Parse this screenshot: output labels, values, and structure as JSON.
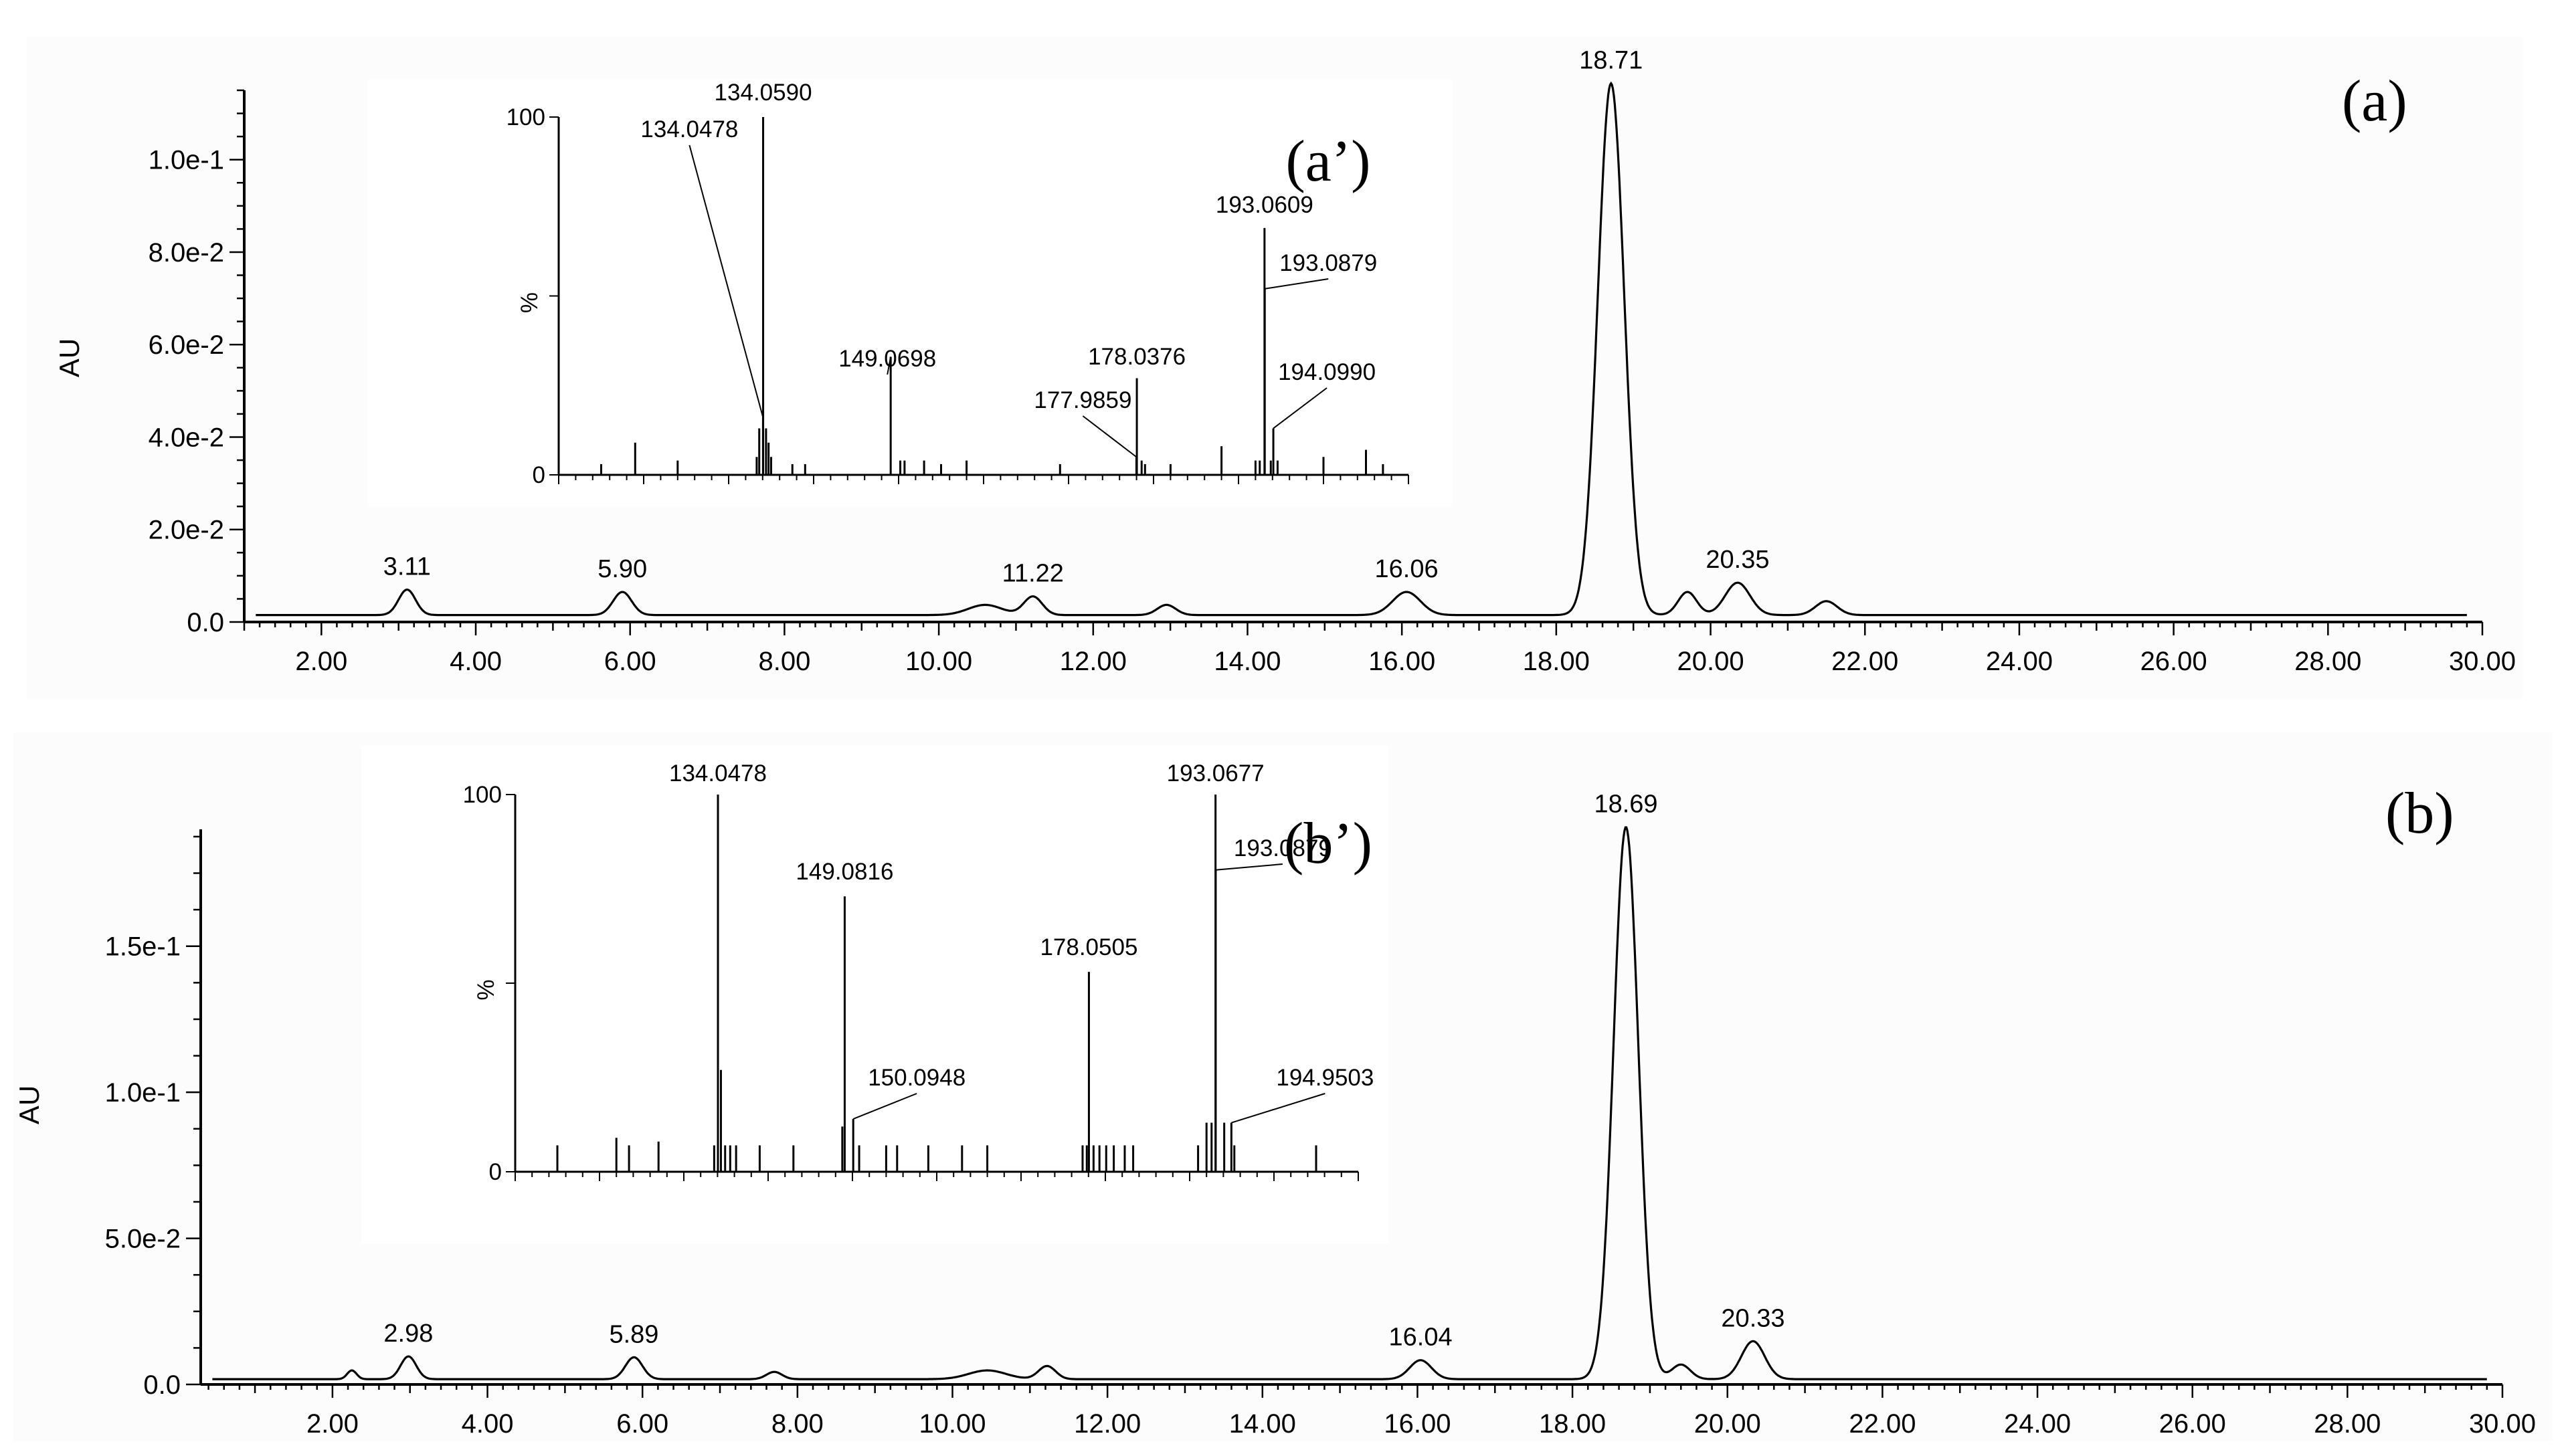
{
  "chart_data": [
    {
      "type": "line",
      "panel_label": "(a)",
      "ylabel": "AU",
      "xlim": [
        0,
        30
      ],
      "ylim": [
        0,
        0.115
      ],
      "x_ticks": [
        "2.00",
        "4.00",
        "6.00",
        "8.00",
        "10.00",
        "12.00",
        "14.00",
        "16.00",
        "18.00",
        "20.00",
        "22.00",
        "24.00",
        "26.00",
        "28.00",
        "30.00"
      ],
      "y_ticks": [
        "0.0",
        "2.0e-2",
        "4.0e-2",
        "6.0e-2",
        "8.0e-2",
        "1.0e-1"
      ],
      "y_tick_values": [
        0,
        0.02,
        0.04,
        0.06,
        0.08,
        0.1
      ],
      "baseline": 0.0015,
      "peaks": [
        {
          "x": 3.11,
          "h": 0.0055,
          "w": 0.11,
          "label": "3.11"
        },
        {
          "x": 5.9,
          "h": 0.005,
          "w": 0.12,
          "label": "5.90"
        },
        {
          "x": 10.6,
          "h": 0.0022,
          "w": 0.22,
          "label": ""
        },
        {
          "x": 11.22,
          "h": 0.004,
          "w": 0.12,
          "label": "11.22"
        },
        {
          "x": 12.95,
          "h": 0.0022,
          "w": 0.12,
          "label": ""
        },
        {
          "x": 16.06,
          "h": 0.005,
          "w": 0.18,
          "label": "16.06"
        },
        {
          "x": 18.71,
          "h": 0.115,
          "w": 0.17,
          "label": "18.71"
        },
        {
          "x": 19.7,
          "h": 0.005,
          "w": 0.12,
          "label": ""
        },
        {
          "x": 20.35,
          "h": 0.007,
          "w": 0.16,
          "label": "20.35"
        },
        {
          "x": 21.5,
          "h": 0.003,
          "w": 0.14,
          "label": ""
        }
      ],
      "inset": {
        "type": "bar",
        "label": "(a’)",
        "ylabel": "%",
        "y_ticks": [
          "0",
          "100"
        ],
        "xlim": [
          110,
          210
        ],
        "ylim": [
          0,
          100
        ],
        "peaks": [
          {
            "x": 115.0,
            "y": 3
          },
          {
            "x": 119.0,
            "y": 9
          },
          {
            "x": 124.0,
            "y": 4
          },
          {
            "x": 133.3,
            "y": 5
          },
          {
            "x": 133.6,
            "y": 13
          },
          {
            "x": 134.0478,
            "y": 16,
            "label": "134.0478"
          },
          {
            "x": 134.059,
            "y": 100,
            "label": "134.0590"
          },
          {
            "x": 134.4,
            "y": 13
          },
          {
            "x": 134.7,
            "y": 9
          },
          {
            "x": 135.0,
            "y": 5
          },
          {
            "x": 137.5,
            "y": 3
          },
          {
            "x": 139.0,
            "y": 3
          },
          {
            "x": 149.0698,
            "y": 33,
            "label": "149.0698"
          },
          {
            "x": 150.2,
            "y": 4
          },
          {
            "x": 150.7,
            "y": 4
          },
          {
            "x": 153.0,
            "y": 4
          },
          {
            "x": 155.0,
            "y": 3
          },
          {
            "x": 158.0,
            "y": 4
          },
          {
            "x": 169.0,
            "y": 3
          },
          {
            "x": 177.9859,
            "y": 5,
            "label": "177.9859"
          },
          {
            "x": 178.0376,
            "y": 27,
            "label": "178.0376"
          },
          {
            "x": 178.6,
            "y": 4
          },
          {
            "x": 179.0,
            "y": 3
          },
          {
            "x": 182.0,
            "y": 3
          },
          {
            "x": 188.0,
            "y": 8
          },
          {
            "x": 192.0,
            "y": 4
          },
          {
            "x": 192.5,
            "y": 4
          },
          {
            "x": 193.0609,
            "y": 69,
            "label": "193.0609"
          },
          {
            "x": 193.0879,
            "y": 52,
            "label": "193.0879"
          },
          {
            "x": 193.8,
            "y": 4
          },
          {
            "x": 194.099,
            "y": 13,
            "label": "194.0990"
          },
          {
            "x": 194.6,
            "y": 4
          },
          {
            "x": 200.0,
            "y": 5
          },
          {
            "x": 205.0,
            "y": 7
          },
          {
            "x": 207.0,
            "y": 3
          }
        ]
      }
    },
    {
      "type": "line",
      "panel_label": "(b)",
      "ylabel": "AU",
      "xlim": [
        0,
        30
      ],
      "ylim": [
        0,
        0.19
      ],
      "x_ticks": [
        "2.00",
        "4.00",
        "6.00",
        "8.00",
        "10.00",
        "12.00",
        "14.00",
        "16.00",
        "18.00",
        "20.00",
        "22.00",
        "24.00",
        "26.00",
        "28.00",
        "30.00"
      ],
      "y_ticks": [
        "0.0",
        "5.0e-2",
        "1.0e-1",
        "1.5e-1"
      ],
      "y_tick_values": [
        0,
        0.05,
        0.1,
        0.15
      ],
      "baseline": 0.0018,
      "peaks": [
        {
          "x": 2.25,
          "h": 0.003,
          "w": 0.06,
          "label": ""
        },
        {
          "x": 2.98,
          "h": 0.0078,
          "w": 0.1,
          "label": "2.98"
        },
        {
          "x": 5.89,
          "h": 0.0075,
          "w": 0.11,
          "label": "5.89"
        },
        {
          "x": 7.7,
          "h": 0.0025,
          "w": 0.1,
          "label": ""
        },
        {
          "x": 10.45,
          "h": 0.003,
          "w": 0.24,
          "label": ""
        },
        {
          "x": 11.22,
          "h": 0.0045,
          "w": 0.11,
          "label": ""
        },
        {
          "x": 16.04,
          "h": 0.0065,
          "w": 0.14,
          "label": "16.04"
        },
        {
          "x": 18.69,
          "h": 0.189,
          "w": 0.16,
          "label": "18.69"
        },
        {
          "x": 19.4,
          "h": 0.005,
          "w": 0.12,
          "label": ""
        },
        {
          "x": 20.33,
          "h": 0.013,
          "w": 0.15,
          "label": "20.33"
        }
      ],
      "inset": {
        "type": "bar",
        "label": "(b’)",
        "ylabel": "%",
        "y_ticks": [
          "0",
          "100"
        ],
        "xlim": [
          110,
          210
        ],
        "ylim": [
          0,
          100
        ],
        "peaks": [
          {
            "x": 115.0,
            "y": 7
          },
          {
            "x": 122.0,
            "y": 9
          },
          {
            "x": 123.5,
            "y": 7
          },
          {
            "x": 127.0,
            "y": 8
          },
          {
            "x": 133.6,
            "y": 7
          },
          {
            "x": 134.0478,
            "y": 100,
            "label": "134.0478"
          },
          {
            "x": 134.4,
            "y": 27
          },
          {
            "x": 134.9,
            "y": 7
          },
          {
            "x": 135.5,
            "y": 7
          },
          {
            "x": 136.2,
            "y": 7
          },
          {
            "x": 139.0,
            "y": 7
          },
          {
            "x": 143.0,
            "y": 7
          },
          {
            "x": 148.8,
            "y": 12
          },
          {
            "x": 149.0816,
            "y": 73,
            "label": "149.0816"
          },
          {
            "x": 150.0948,
            "y": 14,
            "label": "150.0948"
          },
          {
            "x": 150.8,
            "y": 7
          },
          {
            "x": 154.0,
            "y": 7
          },
          {
            "x": 155.3,
            "y": 7
          },
          {
            "x": 159.0,
            "y": 7
          },
          {
            "x": 163.0,
            "y": 7
          },
          {
            "x": 166.0,
            "y": 7
          },
          {
            "x": 177.3,
            "y": 7
          },
          {
            "x": 177.8,
            "y": 7
          },
          {
            "x": 178.0505,
            "y": 53,
            "label": "178.0505"
          },
          {
            "x": 178.6,
            "y": 7
          },
          {
            "x": 179.3,
            "y": 7
          },
          {
            "x": 180.1,
            "y": 7
          },
          {
            "x": 181.0,
            "y": 7
          },
          {
            "x": 182.3,
            "y": 7
          },
          {
            "x": 183.3,
            "y": 7
          },
          {
            "x": 191.0,
            "y": 7
          },
          {
            "x": 192.0,
            "y": 13
          },
          {
            "x": 192.6,
            "y": 13
          },
          {
            "x": 193.0677,
            "y": 100,
            "label": "193.0677"
          },
          {
            "x": 193.0879,
            "y": 80,
            "label": "193.0879"
          },
          {
            "x": 194.1,
            "y": 13
          },
          {
            "x": 194.9503,
            "y": 13,
            "label": "194.9503"
          },
          {
            "x": 195.3,
            "y": 7
          },
          {
            "x": 205.0,
            "y": 7
          }
        ]
      }
    }
  ]
}
